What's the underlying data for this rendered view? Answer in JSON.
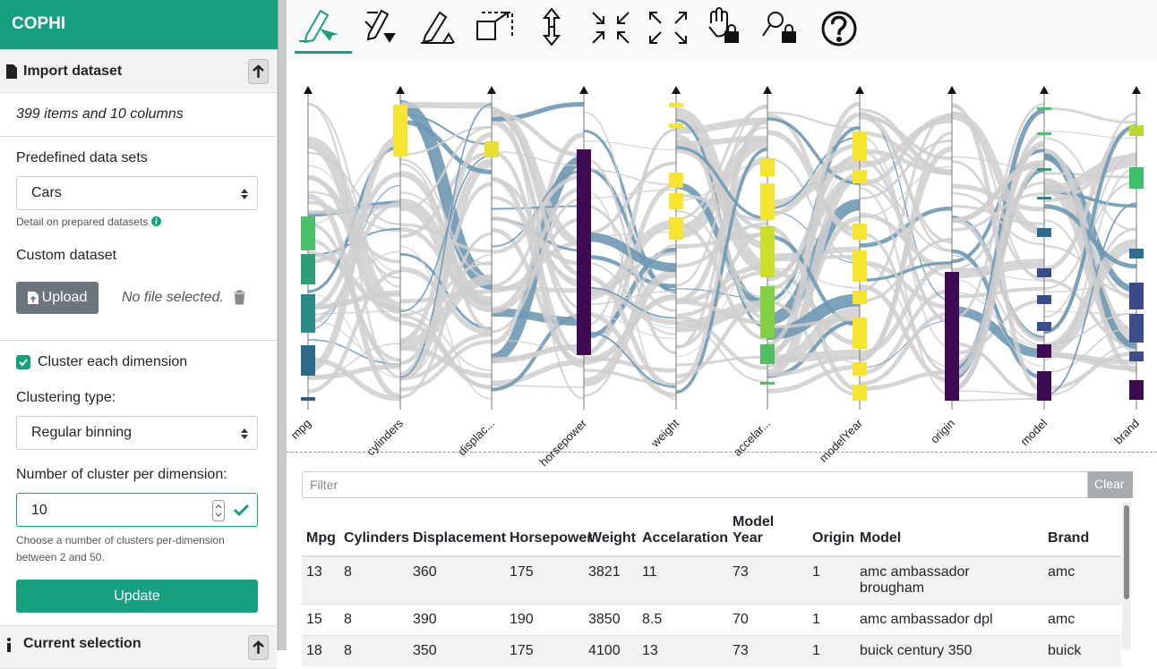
{
  "sidebar": {
    "app_title": "COPHI",
    "import_title": "Import dataset",
    "items_info": "399 items and 10 columns",
    "predefined_label": "Predefined data sets",
    "dataset_select": "Cars",
    "detail_link": "Detail on prepared datasets",
    "custom_label": "Custom dataset",
    "upload_button": "Upload",
    "no_file": "No file selected.",
    "cluster_checkbox": "Cluster each dimension",
    "clustering_type_label": "Clustering type:",
    "clustering_select": "Regular binning",
    "cluster_number_label": "Number of cluster per dimension:",
    "cluster_number_value": "10",
    "help_text": "Choose a number of clusters per-dimension between 2 and 50.",
    "update_button": "Update",
    "current_selection": "Current selection"
  },
  "chart": {
    "axes": [
      "mpg",
      "cylinders",
      "displac...",
      "horsepower",
      "weight",
      "accelar...",
      "modelYear",
      "origin",
      "model",
      "brand"
    ]
  },
  "filter": {
    "placeholder": "Filter",
    "clear": "Clear"
  },
  "table": {
    "headers": [
      "Mpg",
      "Cylinders",
      "Displacement",
      "Horsepower",
      "Weight",
      "Accelaration",
      "Model Year",
      "Origin",
      "Model",
      "Brand"
    ],
    "rows": [
      [
        "13",
        "8",
        "360",
        "175",
        "3821",
        "11",
        "73",
        "1",
        "amc ambassador brougham",
        "amc"
      ],
      [
        "15",
        "8",
        "390",
        "190",
        "3850",
        "8.5",
        "70",
        "1",
        "amc ambassador dpl",
        "amc"
      ],
      [
        "18",
        "8",
        "350",
        "175",
        "4100",
        "13",
        "73",
        "1",
        "buick century 350",
        "buick"
      ]
    ]
  }
}
